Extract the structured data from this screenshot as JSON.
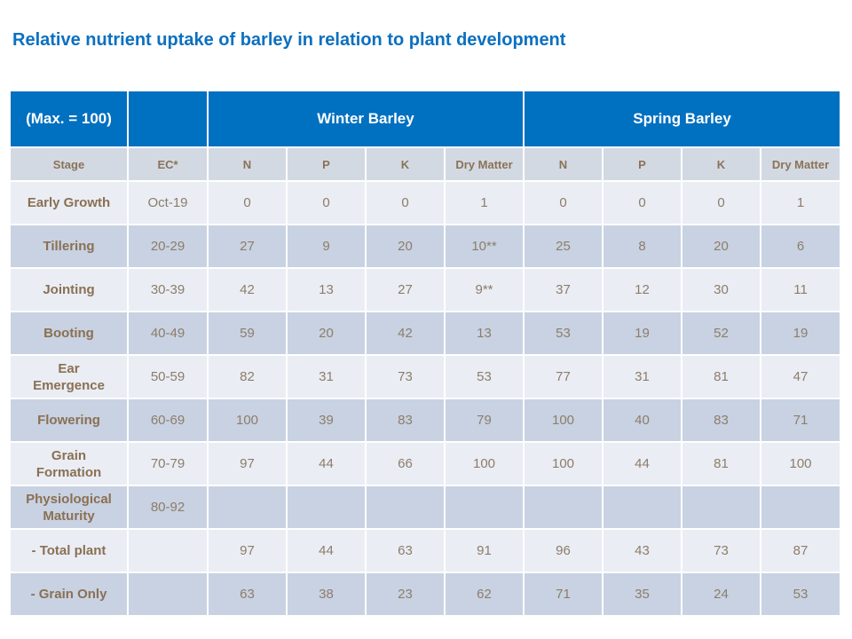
{
  "title": "Relative nutrient uptake of barley in relation to plant development",
  "table": {
    "top_header": {
      "max_label": "(Max. = 100)",
      "empty_label": "",
      "winter_label": "Winter Barley",
      "spring_label": "Spring Barley"
    },
    "column_headers": [
      "Stage",
      "EC*",
      "N",
      "P",
      "K",
      "Dry Matter",
      "N",
      "P",
      "K",
      "Dry Matter"
    ],
    "rows": [
      {
        "stage": "Early Growth",
        "ec": "Oct-19",
        "values": [
          "0",
          "0",
          "0",
          "1",
          "0",
          "0",
          "0",
          "1"
        ]
      },
      {
        "stage": "Tillering",
        "ec": "20-29",
        "values": [
          "27",
          "9",
          "20",
          "10**",
          "25",
          "8",
          "20",
          "6"
        ]
      },
      {
        "stage": "Jointing",
        "ec": "30-39",
        "values": [
          "42",
          "13",
          "27",
          "9**",
          "37",
          "12",
          "30",
          "11"
        ]
      },
      {
        "stage": "Booting",
        "ec": "40-49",
        "values": [
          "59",
          "20",
          "42",
          "13",
          "53",
          "19",
          "52",
          "19"
        ]
      },
      {
        "stage": "Ear Emergence",
        "ec": "50-59",
        "values": [
          "82",
          "31",
          "73",
          "53",
          "77",
          "31",
          "81",
          "47"
        ]
      },
      {
        "stage": "Flowering",
        "ec": "60-69",
        "values": [
          "100",
          "39",
          "83",
          "79",
          "100",
          "40",
          "83",
          "71"
        ]
      },
      {
        "stage": "Grain Formation",
        "ec": "70-79",
        "values": [
          "97",
          "44",
          "66",
          "100",
          "100",
          "44",
          "81",
          "100"
        ]
      },
      {
        "stage": "Physiological Maturity",
        "ec": "80-92",
        "values": [
          "",
          "",
          "",
          "",
          "",
          "",
          "",
          ""
        ]
      },
      {
        "stage": "- Total plant",
        "ec": "",
        "values": [
          "97",
          "44",
          "63",
          "91",
          "96",
          "43",
          "73",
          "87"
        ]
      },
      {
        "stage": "- Grain Only",
        "ec": "",
        "values": [
          "63",
          "38",
          "23",
          "62",
          "71",
          "35",
          "24",
          "53"
        ]
      }
    ]
  },
  "colors": {
    "header_blue": "#0070C0",
    "title_blue": "#0B70C0",
    "subheader_bg": "#D3D9E3",
    "row_light": "#EAEDF4",
    "row_banded": "#C8D2E2",
    "value_text": "#8D7D6A",
    "label_text": "#8A7053",
    "header_text": "#FFFFFF"
  }
}
